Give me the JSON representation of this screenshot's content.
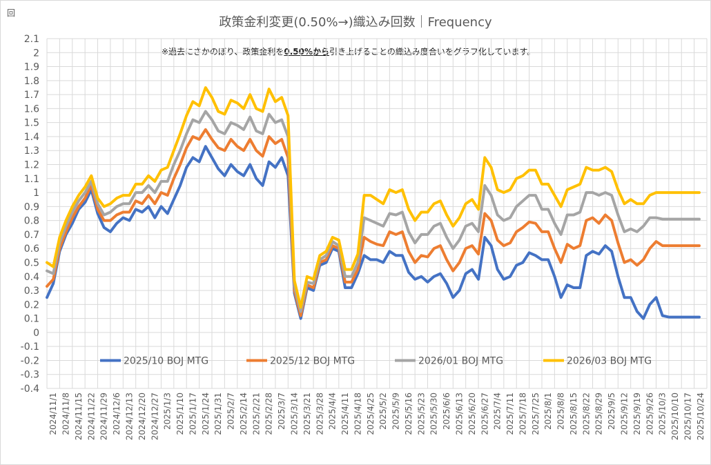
{
  "chart_data": {
    "type": "line",
    "unit_label": "回",
    "title": "政策金利変更(0.50%→)織込み回数｜Frequency",
    "annotation": {
      "prefix": "※過去にさかのぼり、政策金利を",
      "emphasis": "0.50%から",
      "suffix": "引き上げることの織込み度合いをグラフ化しています。"
    },
    "ylim": [
      -0.4,
      2.1
    ],
    "y_ticks": [
      "2.1",
      "2",
      "1.9",
      "1.8",
      "1.7",
      "1.6",
      "1.5",
      "1.4",
      "1.3",
      "1.2",
      "1.1",
      "1",
      "0.9",
      "0.8",
      "0.7",
      "0.6",
      "0.5",
      "0.4",
      "0.3",
      "0.2",
      "0.1",
      "0",
      "-0.1",
      "-0.2",
      "-0.3",
      "-0.4"
    ],
    "x_ticks": [
      "2024/11/1",
      "2024/11/8",
      "2024/11/15",
      "2024/11/22",
      "2024/11/29",
      "2024/12/6",
      "2024/12/13",
      "2024/12/20",
      "2024/12/27",
      "2025/1/3",
      "2025/1/10",
      "2025/1/17",
      "2025/1/24",
      "2025/1/31",
      "2025/2/7",
      "2025/2/14",
      "2025/2/21",
      "2025/2/28",
      "2025/3/7",
      "2025/3/14",
      "2025/3/21",
      "2025/3/28",
      "2025/4/4",
      "2025/4/11",
      "2025/4/18",
      "2025/4/25",
      "2025/5/2",
      "2025/5/9",
      "2025/5/16",
      "2025/5/23",
      "2025/5/30",
      "2025/6/6",
      "2025/6/13",
      "2025/6/20",
      "2025/6/27",
      "2025/7/4",
      "2025/7/11",
      "2025/7/18",
      "2025/7/25",
      "2025/8/1",
      "2025/8/8",
      "2025/8/15",
      "2025/8/22",
      "2025/8/29",
      "2025/9/5",
      "2025/9/12",
      "2025/9/19",
      "2025/9/26",
      "2025/10/3",
      "2025/10/10",
      "2025/10/17",
      "2025/10/24"
    ],
    "x_points": [
      0,
      0.5,
      1,
      1.5,
      2,
      2.5,
      3,
      3.5,
      4,
      4.5,
      5,
      5.5,
      6,
      6.5,
      7,
      7.5,
      8,
      8.5,
      9,
      9.5,
      10,
      10.5,
      11,
      11.5,
      12,
      12.5,
      13,
      13.5,
      14,
      14.5,
      15,
      15.5,
      16,
      16.5,
      17,
      17.5,
      18,
      18.5,
      19,
      19.5,
      20,
      20.5,
      21,
      21.5,
      22,
      22.5,
      23,
      23.5,
      24,
      24.5,
      25,
      25.5,
      26,
      26.5,
      27,
      27.5,
      28,
      28.5,
      29,
      29.5,
      30,
      30.5,
      31,
      31.5,
      32,
      32.5,
      33,
      33.5,
      34,
      34.5,
      35,
      35.5,
      36,
      36.5,
      37,
      37.5,
      38,
      38.5,
      39,
      39.5,
      40,
      40.5,
      41,
      41.5,
      42,
      42.5,
      43,
      43.5,
      44,
      44.5,
      45,
      45.5,
      46,
      46.5,
      47,
      47.5,
      48,
      48.5,
      49,
      49.5,
      50,
      50.5,
      51,
      51.4
    ],
    "series": [
      {
        "name": "2025/10 BOJ MTG",
        "color": "#4472c4",
        "values": [
          0.25,
          0.35,
          0.58,
          0.7,
          0.78,
          0.88,
          0.93,
          1.02,
          0.85,
          0.75,
          0.72,
          0.78,
          0.82,
          0.8,
          0.88,
          0.86,
          0.9,
          0.82,
          0.9,
          0.85,
          0.95,
          1.05,
          1.18,
          1.25,
          1.22,
          1.33,
          1.25,
          1.17,
          1.12,
          1.2,
          1.15,
          1.12,
          1.2,
          1.1,
          1.05,
          1.22,
          1.18,
          1.25,
          1.12,
          0.28,
          0.1,
          0.32,
          0.3,
          0.48,
          0.5,
          0.6,
          0.58,
          0.32,
          0.32,
          0.42,
          0.55,
          0.52,
          0.52,
          0.5,
          0.58,
          0.55,
          0.55,
          0.43,
          0.38,
          0.4,
          0.36,
          0.4,
          0.42,
          0.35,
          0.25,
          0.3,
          0.42,
          0.45,
          0.38,
          0.68,
          0.62,
          0.45,
          0.38,
          0.4,
          0.48,
          0.5,
          0.57,
          0.55,
          0.52,
          0.52,
          0.4,
          0.25,
          0.34,
          0.32,
          0.32,
          0.55,
          0.58,
          0.56,
          0.62,
          0.58,
          0.4,
          0.25,
          0.25,
          0.15,
          0.1,
          0.2,
          0.25,
          0.12,
          0.11,
          0.11,
          0.11,
          0.11,
          0.11,
          0.11
        ]
      },
      {
        "name": "2025/12 BOJ MTG",
        "color": "#ed7d31",
        "values": [
          0.33,
          0.38,
          0.6,
          0.72,
          0.82,
          0.9,
          0.96,
          1.05,
          0.88,
          0.8,
          0.8,
          0.84,
          0.86,
          0.86,
          0.94,
          0.92,
          0.98,
          0.92,
          1.0,
          0.98,
          1.1,
          1.2,
          1.32,
          1.4,
          1.38,
          1.45,
          1.38,
          1.32,
          1.3,
          1.38,
          1.33,
          1.3,
          1.38,
          1.3,
          1.26,
          1.4,
          1.35,
          1.38,
          1.25,
          0.3,
          0.12,
          0.34,
          0.32,
          0.5,
          0.52,
          0.62,
          0.6,
          0.36,
          0.36,
          0.45,
          0.68,
          0.65,
          0.63,
          0.62,
          0.72,
          0.7,
          0.72,
          0.58,
          0.5,
          0.55,
          0.54,
          0.6,
          0.62,
          0.52,
          0.44,
          0.5,
          0.6,
          0.62,
          0.56,
          0.85,
          0.8,
          0.66,
          0.62,
          0.64,
          0.72,
          0.75,
          0.79,
          0.78,
          0.72,
          0.72,
          0.6,
          0.5,
          0.63,
          0.6,
          0.62,
          0.8,
          0.82,
          0.78,
          0.84,
          0.8,
          0.64,
          0.5,
          0.52,
          0.48,
          0.52,
          0.6,
          0.65,
          0.62,
          0.62,
          0.62,
          0.62,
          0.62,
          0.62,
          0.62
        ]
      },
      {
        "name": "2026/01 BOJ MTG",
        "color": "#a5a5a5",
        "values": [
          0.44,
          0.42,
          0.64,
          0.76,
          0.86,
          0.94,
          1.0,
          1.08,
          0.92,
          0.84,
          0.86,
          0.9,
          0.92,
          0.92,
          1.0,
          1.0,
          1.05,
          1.0,
          1.08,
          1.08,
          1.2,
          1.3,
          1.42,
          1.52,
          1.5,
          1.58,
          1.52,
          1.44,
          1.42,
          1.5,
          1.48,
          1.45,
          1.54,
          1.44,
          1.42,
          1.56,
          1.5,
          1.52,
          1.4,
          0.33,
          0.15,
          0.36,
          0.35,
          0.52,
          0.55,
          0.65,
          0.62,
          0.4,
          0.4,
          0.5,
          0.82,
          0.8,
          0.78,
          0.76,
          0.85,
          0.84,
          0.86,
          0.72,
          0.64,
          0.7,
          0.7,
          0.76,
          0.78,
          0.68,
          0.6,
          0.66,
          0.76,
          0.78,
          0.72,
          1.05,
          0.98,
          0.84,
          0.8,
          0.82,
          0.9,
          0.94,
          0.98,
          0.98,
          0.88,
          0.88,
          0.78,
          0.7,
          0.84,
          0.84,
          0.86,
          1.0,
          1.0,
          0.98,
          1.0,
          0.98,
          0.84,
          0.72,
          0.74,
          0.72,
          0.76,
          0.82,
          0.82,
          0.81,
          0.81,
          0.81,
          0.81,
          0.81,
          0.81,
          0.81
        ]
      },
      {
        "name": "2026/03 BOJ MTG",
        "color": "#ffc000",
        "values": [
          0.5,
          0.47,
          0.68,
          0.8,
          0.9,
          0.98,
          1.04,
          1.12,
          0.96,
          0.9,
          0.92,
          0.96,
          0.98,
          0.98,
          1.06,
          1.06,
          1.12,
          1.08,
          1.16,
          1.18,
          1.3,
          1.42,
          1.55,
          1.65,
          1.62,
          1.75,
          1.68,
          1.58,
          1.56,
          1.66,
          1.64,
          1.6,
          1.7,
          1.6,
          1.58,
          1.74,
          1.65,
          1.68,
          1.55,
          0.37,
          0.18,
          0.4,
          0.38,
          0.55,
          0.58,
          0.68,
          0.66,
          0.45,
          0.45,
          0.56,
          0.98,
          0.98,
          0.95,
          0.92,
          1.02,
          1.0,
          1.02,
          0.88,
          0.8,
          0.86,
          0.86,
          0.92,
          0.94,
          0.84,
          0.76,
          0.82,
          0.92,
          0.95,
          0.88,
          1.25,
          1.18,
          1.02,
          1.0,
          1.02,
          1.1,
          1.12,
          1.16,
          1.16,
          1.06,
          1.06,
          0.98,
          0.9,
          1.02,
          1.04,
          1.06,
          1.18,
          1.16,
          1.16,
          1.18,
          1.15,
          1.02,
          0.92,
          0.95,
          0.92,
          0.92,
          0.98,
          1.0,
          1.0,
          1.0,
          1.0,
          1.0,
          1.0,
          1.0,
          1.0
        ]
      }
    ]
  }
}
